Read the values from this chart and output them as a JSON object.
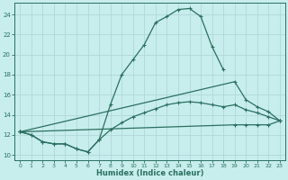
{
  "xlabel": "Humidex (Indice chaleur)",
  "xlim": [
    -0.5,
    23.5
  ],
  "ylim": [
    9.5,
    25.2
  ],
  "yticks": [
    10,
    12,
    14,
    16,
    18,
    20,
    22,
    24
  ],
  "xticks": [
    0,
    1,
    2,
    3,
    4,
    5,
    6,
    7,
    8,
    9,
    10,
    11,
    12,
    13,
    14,
    15,
    16,
    17,
    18,
    19,
    20,
    21,
    22,
    23
  ],
  "bg_color": "#c8eded",
  "line_color": "#2a7060",
  "grid_color": "#b0d8d8",
  "line1_x": [
    0,
    1,
    2,
    3,
    4,
    5,
    6,
    7,
    8,
    9,
    10,
    11,
    12,
    13,
    14,
    15,
    16,
    17,
    18
  ],
  "line1_y": [
    12.3,
    12.0,
    11.3,
    11.1,
    11.1,
    10.6,
    10.3,
    11.5,
    15.0,
    18.0,
    19.5,
    21.0,
    23.2,
    23.8,
    24.5,
    24.6,
    23.8,
    20.8,
    18.5
  ],
  "line2_x": [
    0,
    1,
    2,
    3,
    4,
    5,
    6,
    7,
    8,
    9,
    10,
    11,
    12,
    13,
    14,
    15,
    16,
    17,
    18,
    19,
    20,
    21,
    22,
    23
  ],
  "line2_y": [
    12.3,
    12.0,
    11.3,
    11.1,
    11.1,
    10.6,
    10.3,
    11.5,
    12.5,
    13.2,
    13.8,
    14.2,
    14.6,
    15.0,
    15.2,
    15.3,
    15.2,
    15.0,
    14.8,
    15.0,
    14.5,
    14.2,
    13.8,
    13.4
  ],
  "line3_x": [
    0,
    19,
    20,
    21,
    22,
    23
  ],
  "line3_y": [
    12.3,
    17.3,
    15.5,
    14.8,
    14.3,
    13.4
  ],
  "line4_x": [
    0,
    19,
    20,
    21,
    22,
    23
  ],
  "line4_y": [
    12.3,
    13.0,
    13.0,
    13.0,
    13.0,
    13.4
  ]
}
